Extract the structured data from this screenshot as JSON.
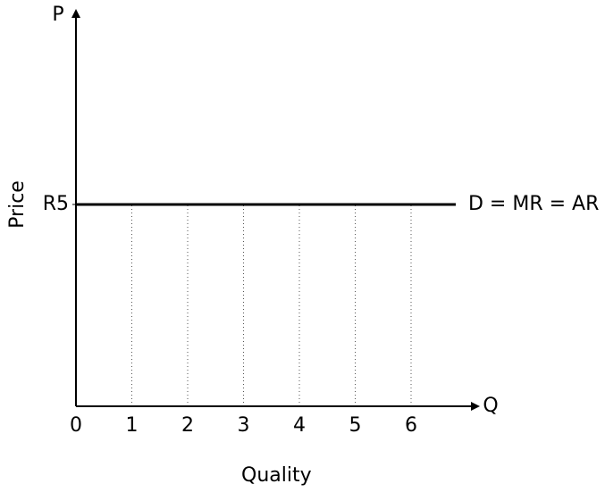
{
  "chart_data": {
    "type": "line",
    "x_label": "Quality",
    "y_label": "Price",
    "x_axis_name": "Q",
    "y_axis_name": "P",
    "x": [
      0,
      6.8
    ],
    "series": [
      {
        "name": "D = MR = AR",
        "color": "#000000",
        "values": [
          5,
          5
        ]
      }
    ],
    "xlim": [
      0,
      7.2
    ],
    "ylim": [
      0,
      9.8
    ],
    "xticks": [
      0,
      1,
      2,
      3,
      4,
      5,
      6
    ],
    "yticks": [
      {
        "value": 5,
        "label": "R5"
      }
    ],
    "grid": true
  }
}
